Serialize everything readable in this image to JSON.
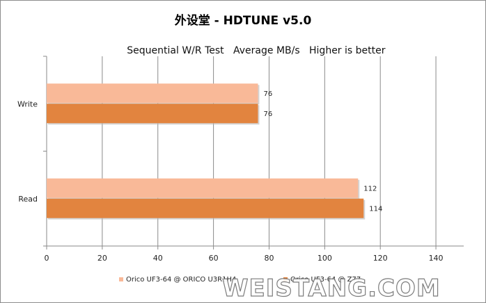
{
  "chart_data": {
    "type": "bar",
    "orientation": "horizontal",
    "title": "外设堂 - HDTUNE v5.0",
    "subtitle_parts": [
      "Sequential W/R Test",
      "Average MB/s",
      "Higher is better"
    ],
    "categories": [
      "Write",
      "Read"
    ],
    "series": [
      {
        "name": "Orico UF3-64 @ ORICO U3R1H4",
        "values": [
          76,
          112
        ],
        "color": "#f9b998"
      },
      {
        "name": "Orico UF3-64 @ Z77",
        "values": [
          76,
          114
        ],
        "color": "#e2843f"
      }
    ],
    "xlim": [
      0,
      150
    ],
    "xticks": [
      0,
      20,
      40,
      60,
      80,
      100,
      120,
      140
    ],
    "grid": true,
    "legend_position": "bottom"
  },
  "watermark": "WEISTANG.COM"
}
